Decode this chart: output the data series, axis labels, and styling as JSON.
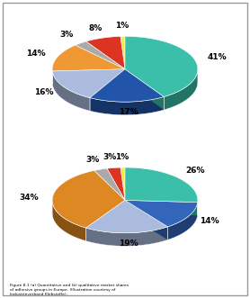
{
  "top_pie": {
    "values": [
      41,
      17,
      16,
      14,
      3,
      8,
      1
    ],
    "colors": [
      "#3bbfaa",
      "#2255aa",
      "#aabbdd",
      "#ee9933",
      "#aaaaaa",
      "#dd3322",
      "#eeee44"
    ],
    "labels": [
      "41%",
      "17%",
      "16%",
      "14%",
      "3%",
      "8%",
      "1%"
    ]
  },
  "bottom_pie": {
    "values": [
      26,
      14,
      19,
      34,
      3,
      3,
      1
    ],
    "colors": [
      "#3bbfaa",
      "#3366bb",
      "#aabbdd",
      "#dd8822",
      "#aaaaaa",
      "#dd3322",
      "#eeee44"
    ],
    "labels": [
      "26%",
      "14%",
      "19%",
      "34%",
      "3%",
      "3%",
      "1%"
    ]
  },
  "bg_color": "#ffffff",
  "yscale": 0.45,
  "depth": 0.18,
  "label_r": 1.32,
  "label_fontsize": 6.5
}
